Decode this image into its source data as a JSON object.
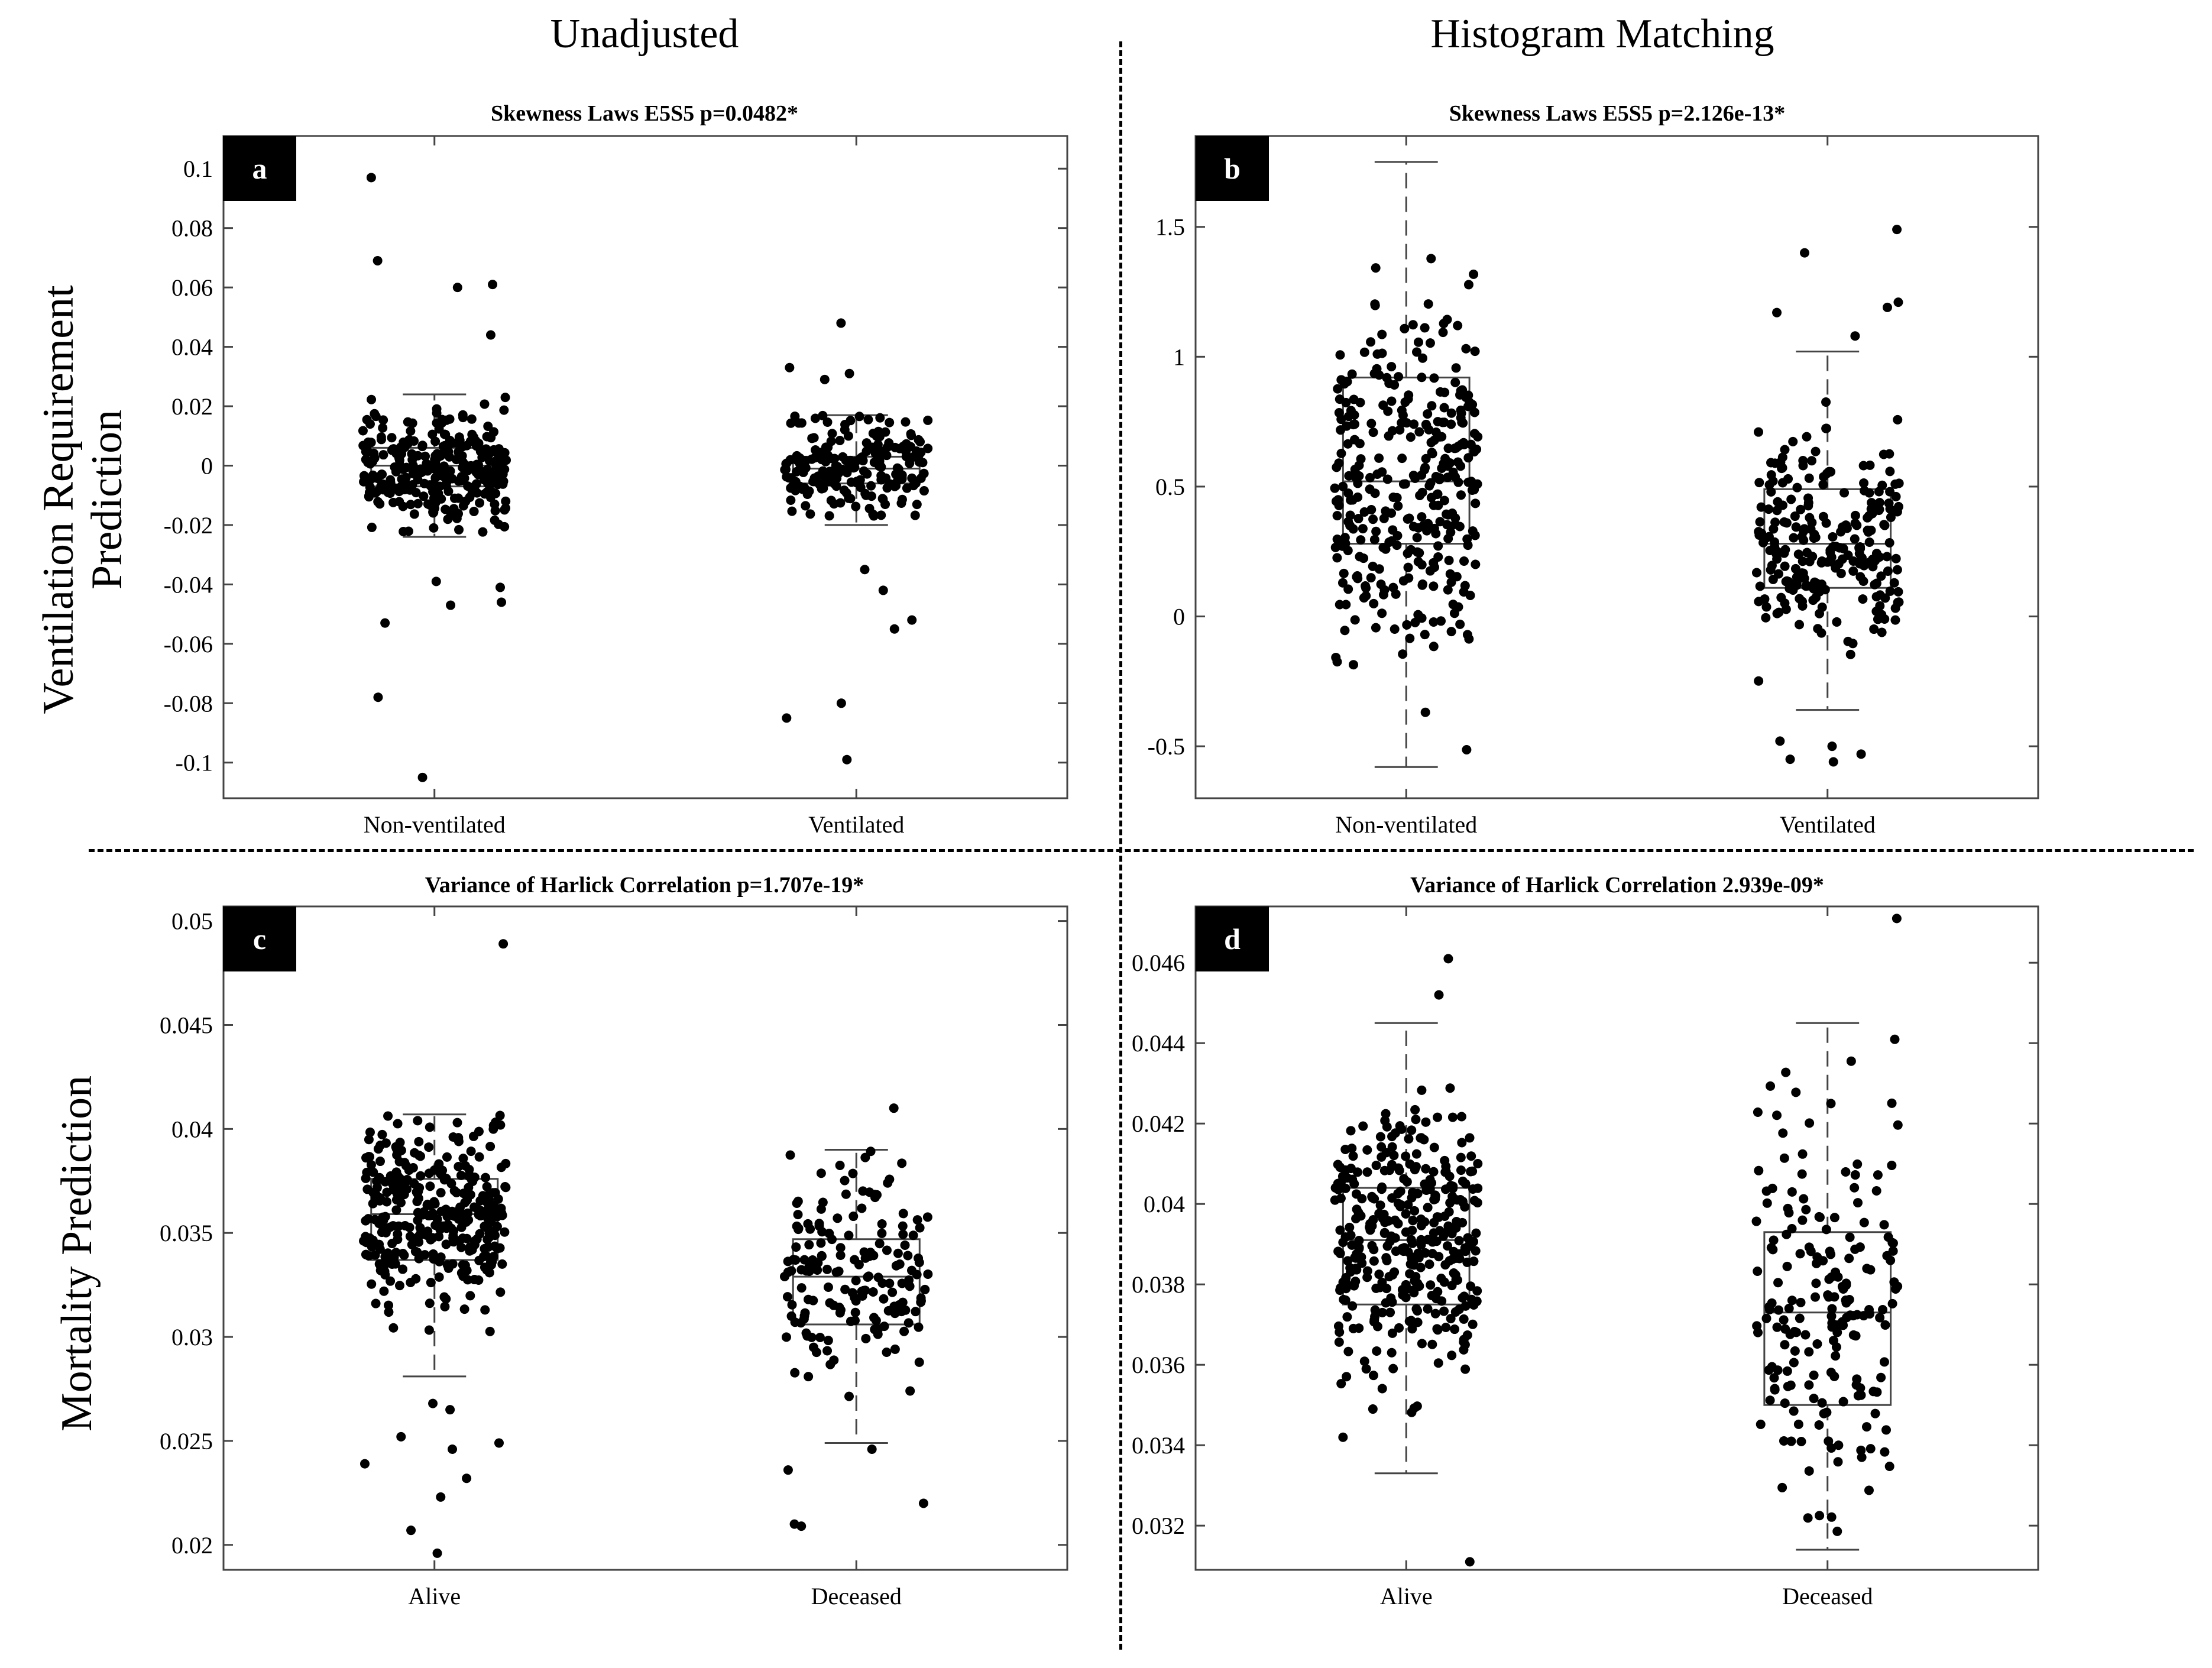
{
  "figure": {
    "col_titles": [
      "Unadjusted",
      "Histogram Matching"
    ],
    "row_labels": [
      "Ventilation Requirement\nPrediction",
      "Mortality Prediction"
    ]
  },
  "chart_data": [
    {
      "panel": "a",
      "type": "box",
      "title": "Skewness Laws E5S5 p=0.0482*",
      "categories": [
        "Non-ventilated",
        "Ventilated"
      ],
      "ylim": [
        -0.112,
        0.111
      ],
      "yticks": [
        -0.1,
        -0.08,
        -0.06,
        -0.04,
        -0.02,
        0,
        0.02,
        0.04,
        0.06,
        0.08,
        0.1
      ],
      "ytick_labels": [
        "-0.1",
        "-0.08",
        "-0.06",
        "-0.04",
        "-0.02",
        "0",
        "0.02",
        "0.04",
        "0.06",
        "0.08",
        "0.1"
      ],
      "boxes": [
        {
          "q1": -0.007,
          "median": 0.0,
          "q3": 0.006,
          "whisker_low": -0.024,
          "whisker_high": 0.024,
          "outliers": [
            0.097,
            0.069,
            0.061,
            0.06,
            0.044,
            -0.039,
            -0.041,
            -0.046,
            -0.047,
            -0.053,
            -0.078,
            -0.105
          ],
          "n": 300,
          "spread": 0.013,
          "seed": 11
        },
        {
          "q1": -0.006,
          "median": -0.001,
          "q3": 0.003,
          "whisker_low": -0.02,
          "whisker_high": 0.017,
          "outliers": [
            0.048,
            0.033,
            0.031,
            0.029,
            -0.035,
            -0.042,
            -0.052,
            -0.055,
            -0.08,
            -0.085,
            -0.099
          ],
          "n": 200,
          "spread": 0.011,
          "seed": 23
        }
      ],
      "grid": false
    },
    {
      "panel": "b",
      "type": "box",
      "title": "Skewness Laws E5S5 p=2.126e-13*",
      "categories": [
        "Non-ventilated",
        "Ventilated"
      ],
      "ylim": [
        -0.7,
        1.85
      ],
      "yticks": [
        -0.5,
        0,
        0.5,
        1,
        1.5
      ],
      "ytick_labels": [
        "-0.5",
        "0",
        "0.5",
        "1",
        "1.5"
      ],
      "boxes": [
        {
          "q1": 0.28,
          "median": 0.52,
          "q3": 0.92,
          "whisker_low": -0.58,
          "whisker_high": 1.75,
          "outliers": [],
          "n": 330,
          "spread": 0.45,
          "seed": 37
        },
        {
          "q1": 0.11,
          "median": 0.28,
          "q3": 0.49,
          "whisker_low": -0.36,
          "whisker_high": 1.02,
          "outliers": [
            1.49,
            1.4,
            1.21,
            1.19,
            1.17,
            1.08,
            -0.48,
            -0.5,
            -0.53,
            -0.55,
            -0.56
          ],
          "n": 240,
          "spread": 0.28,
          "seed": 41
        }
      ],
      "grid": false
    },
    {
      "panel": "c",
      "type": "box",
      "title": "Variance of Harlick Correlation p=1.707e-19*",
      "categories": [
        "Alive",
        "Deceased"
      ],
      "ylim": [
        0.0188,
        0.0507
      ],
      "yticks": [
        0.02,
        0.025,
        0.03,
        0.035,
        0.04,
        0.045,
        0.05
      ],
      "ytick_labels": [
        "0.02",
        "0.025",
        "0.03",
        "0.035",
        "0.04",
        "0.045",
        "0.05"
      ],
      "boxes": [
        {
          "q1": 0.0337,
          "median": 0.0359,
          "q3": 0.0376,
          "whisker_low": 0.0281,
          "whisker_high": 0.0407,
          "outliers": [
            0.0489,
            0.0268,
            0.0265,
            0.0252,
            0.0249,
            0.0246,
            0.0239,
            0.0232,
            0.0223,
            0.0207,
            0.0196
          ],
          "n": 340,
          "spread": 0.003,
          "seed": 53
        },
        {
          "q1": 0.0306,
          "median": 0.0329,
          "q3": 0.0347,
          "whisker_low": 0.0249,
          "whisker_high": 0.039,
          "outliers": [
            0.041,
            0.0246,
            0.0236,
            0.022,
            0.021,
            0.0209
          ],
          "n": 170,
          "spread": 0.0032,
          "seed": 67
        }
      ],
      "grid": false
    },
    {
      "panel": "d",
      "type": "box",
      "title": "Variance of Harlick Correlation 2.939e-09*",
      "categories": [
        "Alive",
        "Deceased"
      ],
      "ylim": [
        0.0309,
        0.0474
      ],
      "yticks": [
        0.032,
        0.034,
        0.036,
        0.038,
        0.04,
        0.042,
        0.044,
        0.046
      ],
      "ytick_labels": [
        "0.032",
        "0.034",
        "0.036",
        "0.038",
        "0.04",
        "0.042",
        "0.044",
        "0.046"
      ],
      "boxes": [
        {
          "q1": 0.0375,
          "median": 0.0391,
          "q3": 0.0404,
          "whisker_low": 0.0333,
          "whisker_high": 0.0445,
          "outliers": [
            0.0461,
            0.0452,
            0.0311
          ],
          "n": 360,
          "spread": 0.0023,
          "seed": 79
        },
        {
          "q1": 0.035,
          "median": 0.0373,
          "q3": 0.0393,
          "whisker_low": 0.0314,
          "whisker_high": 0.0445,
          "outliers": [
            0.0471
          ],
          "n": 190,
          "spread": 0.0032,
          "seed": 83
        }
      ],
      "grid": false
    }
  ]
}
